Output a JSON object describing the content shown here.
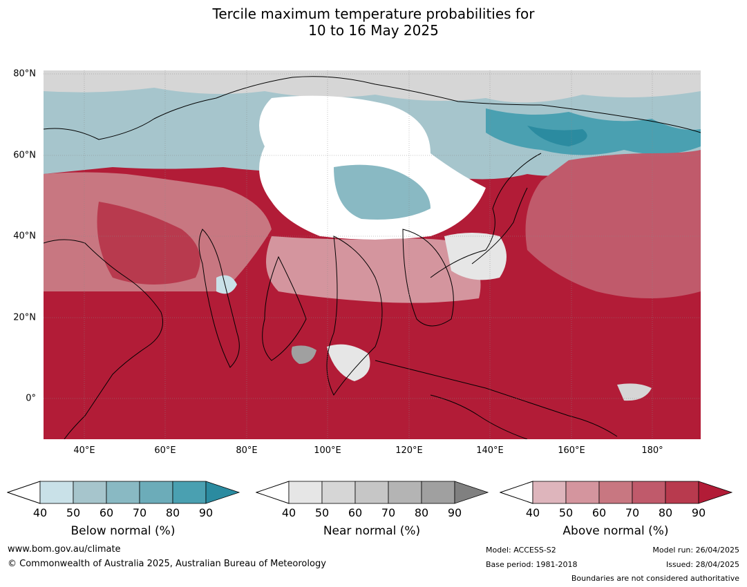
{
  "title": {
    "line1": "Tercile maximum temperature probabilities for",
    "line2": "10 to 16 May 2025"
  },
  "map": {
    "lat_labels": [
      "80°N",
      "60°N",
      "40°N",
      "20°N",
      "0°"
    ],
    "lon_labels": [
      "40°E",
      "60°E",
      "80°E",
      "100°E",
      "120°E",
      "140°E",
      "160°E",
      "180°"
    ],
    "colors": {
      "below": [
        "#c9e1e8",
        "#a6c5cc",
        "#89b9c3",
        "#6cacb9",
        "#4aa0b1",
        "#2b8ba0"
      ],
      "near": [
        "#e6e6e6",
        "#d6d6d6",
        "#c6c6c6",
        "#b4b4b4",
        "#a0a0a0",
        "#808080"
      ],
      "above": [
        "#deb5bc",
        "#d4959e",
        "#c87781",
        "#c05a6b",
        "#b83a4e",
        "#b21c37"
      ]
    }
  },
  "legends": [
    {
      "id": "below",
      "title": "Below normal (%)",
      "ticks": [
        "40",
        "50",
        "60",
        "70",
        "80",
        "90"
      ]
    },
    {
      "id": "near",
      "title": "Near normal (%)",
      "ticks": [
        "40",
        "50",
        "60",
        "70",
        "80",
        "90"
      ]
    },
    {
      "id": "above",
      "title": "Above normal (%)",
      "ticks": [
        "40",
        "50",
        "60",
        "70",
        "80",
        "90"
      ]
    }
  ],
  "footer": {
    "website": "www.bom.gov.au/climate",
    "copyright": "© Commonwealth of Australia 2025, Australian Bureau of Meteorology",
    "model": "Model: ACCESS-S2",
    "base_period": "Base period: 1981-2018",
    "model_run": "Model run: 26/04/2025",
    "issued": "Issued: 28/04/2025",
    "disclaimer": "Boundaries are not considered authoritative"
  }
}
